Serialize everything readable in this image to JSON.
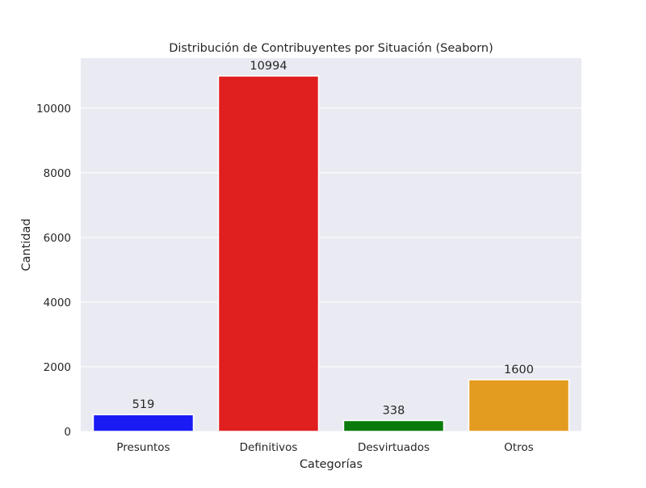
{
  "chart_data": {
    "type": "bar",
    "title": "Distribución de Contribuyentes por Situación (Seaborn)",
    "xlabel": "Categorías",
    "ylabel": "Cantidad",
    "categories": [
      "Presuntos",
      "Definitivos",
      "Desvirtuados",
      "Otros"
    ],
    "values": [
      519,
      10994,
      338,
      1600
    ],
    "data_labels": [
      "519",
      "10994",
      "338",
      "1600"
    ],
    "colors": [
      "#1a1af5",
      "#e01f1f",
      "#0a7a0a",
      "#e39c1f"
    ],
    "yticks": [
      0,
      2000,
      4000,
      6000,
      8000,
      10000
    ],
    "ytick_labels": [
      "0",
      "2000",
      "4000",
      "6000",
      "8000",
      "10000"
    ],
    "ylim": [
      0,
      11543.7
    ],
    "grid": true,
    "background": "#eaeaf2",
    "grid_color": "#ffffff"
  }
}
